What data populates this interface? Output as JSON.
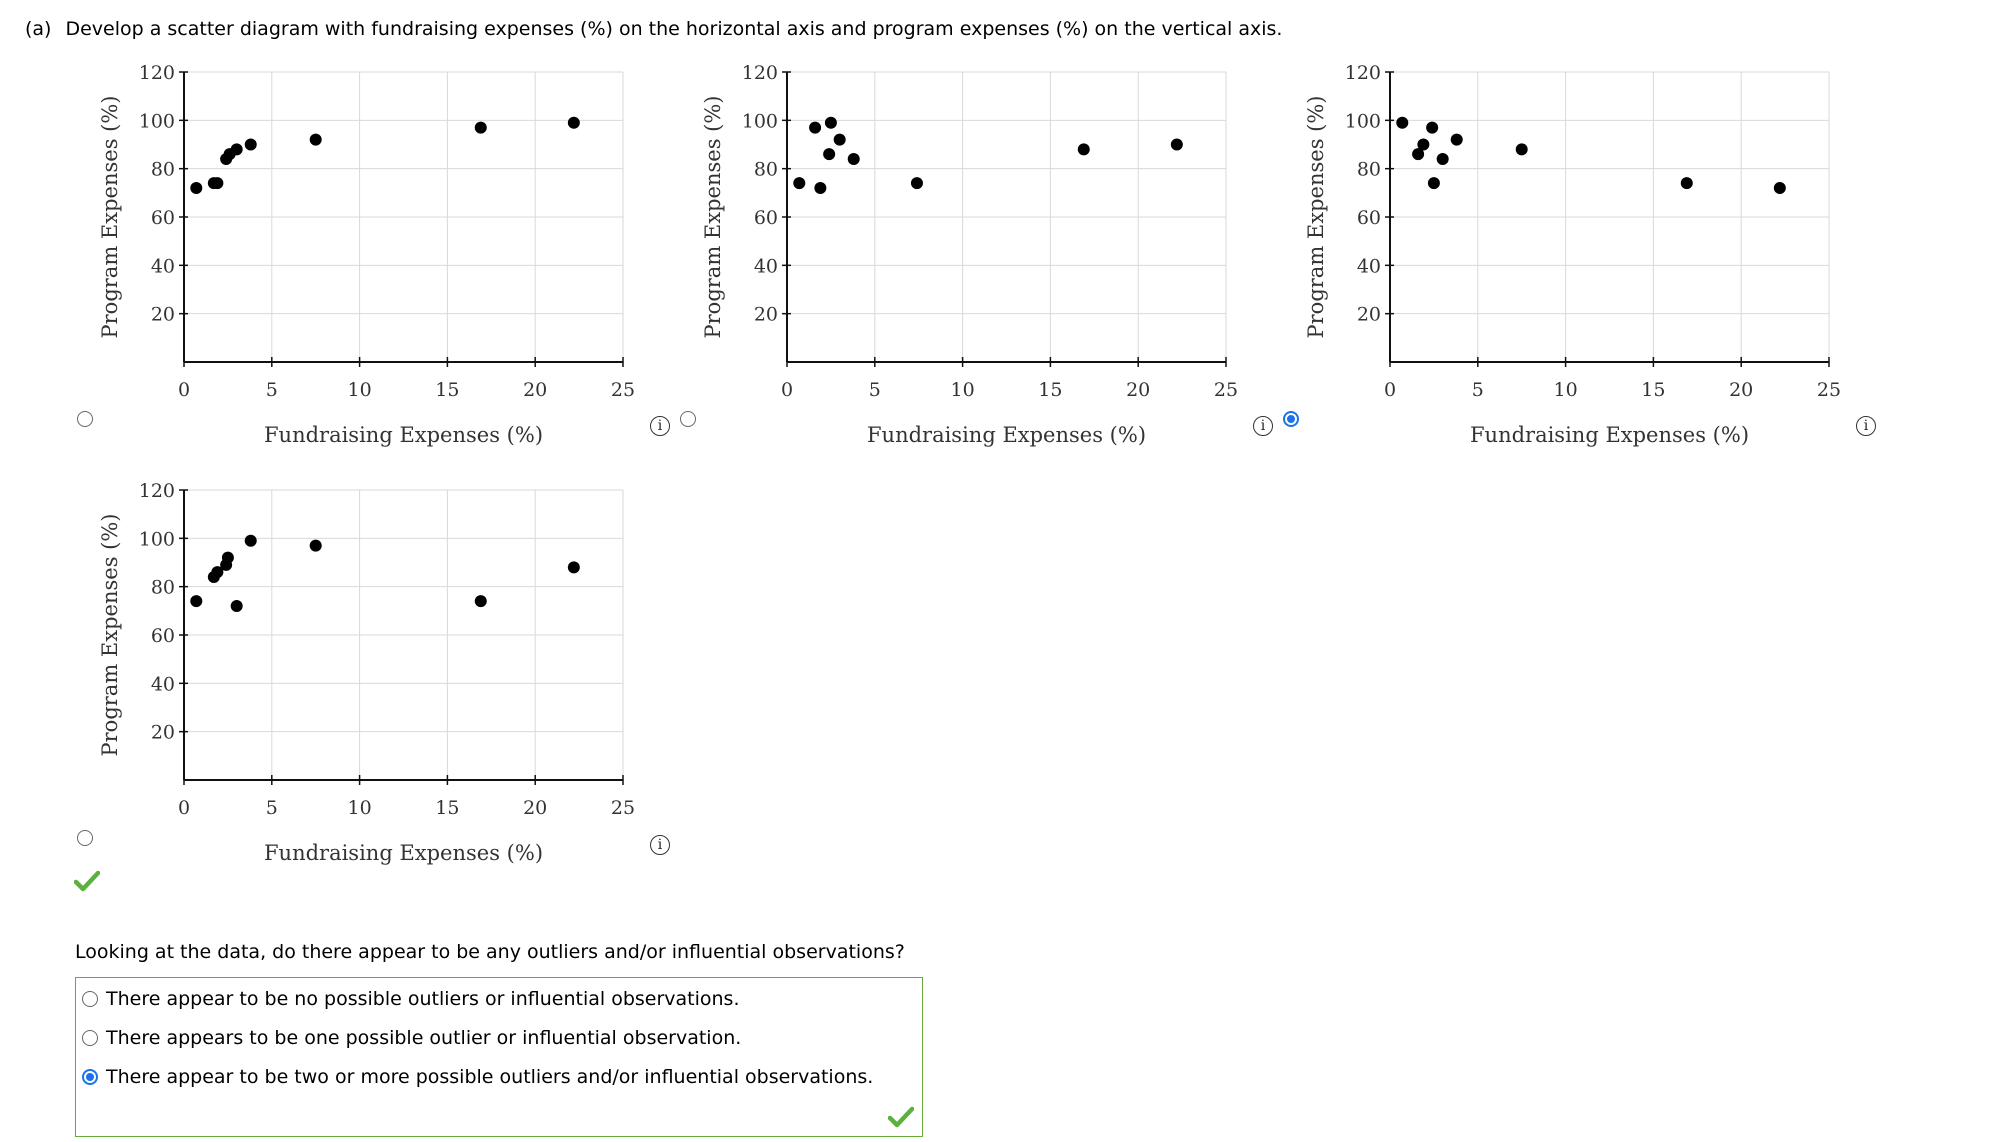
{
  "question": {
    "part": "(a)",
    "text": "Develop a scatter diagram with fundraising expenses (%) on the horizontal axis and program expenses (%) on the vertical axis."
  },
  "axis": {
    "xlabel": "Fundraising Expenses",
    "ylabel": "Program Expenses",
    "unit": "(%)",
    "xticks": [
      "0",
      "5",
      "10",
      "15",
      "20",
      "25"
    ],
    "yticks": [
      "120",
      "100",
      "80",
      "60",
      "40",
      "20"
    ]
  },
  "choices": [
    {
      "id": "A",
      "selected": false
    },
    {
      "id": "B",
      "selected": false
    },
    {
      "id": "C",
      "selected": true
    },
    {
      "id": "D",
      "selected": false,
      "marked_correct": true
    }
  ],
  "followup": {
    "question": "Looking at the data, do there appear to be any outliers and/or influential observations?",
    "options": [
      {
        "label": "There appear to be no possible outliers or influential observations.",
        "selected": false
      },
      {
        "label": "There appears to be one possible outlier or influential observation.",
        "selected": false
      },
      {
        "label": "There appear to be two or more possible outliers and/or influential observations.",
        "selected": true
      }
    ],
    "status": "correct"
  },
  "colors": {
    "accent": "#1a73e8",
    "correct": "#5cb03c",
    "grid": "#d9d9d9",
    "box_border": "#6aaa3a"
  },
  "chart_data": [
    {
      "type": "scatter",
      "title": "",
      "xlabel": "Fundraising Expenses (%)",
      "ylabel": "Program Expenses (%)",
      "xlim": [
        0,
        25
      ],
      "ylim": [
        0,
        120
      ],
      "grid": true,
      "x": [
        0.7,
        1.7,
        1.9,
        2.4,
        2.6,
        3.0,
        3.8,
        7.5,
        16.9,
        22.2
      ],
      "y": [
        72,
        74,
        74,
        84,
        86,
        88,
        90,
        92,
        97,
        99
      ]
    },
    {
      "type": "scatter",
      "title": "",
      "xlabel": "Fundraising Expenses (%)",
      "ylabel": "Program Expenses (%)",
      "xlim": [
        0,
        25
      ],
      "ylim": [
        0,
        120
      ],
      "grid": true,
      "x": [
        0.7,
        1.6,
        1.9,
        2.4,
        2.5,
        3.0,
        3.8,
        7.4,
        16.9,
        22.2
      ],
      "y": [
        74,
        97,
        72,
        86,
        99,
        92,
        84,
        74,
        88,
        90
      ]
    },
    {
      "type": "scatter",
      "title": "",
      "xlabel": "Fundraising Expenses (%)",
      "ylabel": "Program Expenses (%)",
      "xlim": [
        0,
        25
      ],
      "ylim": [
        0,
        120
      ],
      "grid": true,
      "x": [
        0.7,
        1.6,
        1.9,
        2.4,
        2.5,
        3.0,
        3.8,
        7.5,
        16.9,
        22.2
      ],
      "y": [
        99,
        86,
        90,
        97,
        74,
        84,
        92,
        88,
        74,
        72
      ]
    },
    {
      "type": "scatter",
      "title": "",
      "xlabel": "Fundraising Expenses (%)",
      "ylabel": "Program Expenses (%)",
      "xlim": [
        0,
        25
      ],
      "ylim": [
        0,
        120
      ],
      "grid": true,
      "x": [
        0.7,
        1.7,
        1.9,
        2.4,
        2.5,
        3.0,
        3.8,
        7.5,
        16.9,
        22.2
      ],
      "y": [
        74,
        84,
        86,
        89,
        92,
        72,
        99,
        97,
        74,
        88
      ]
    }
  ]
}
